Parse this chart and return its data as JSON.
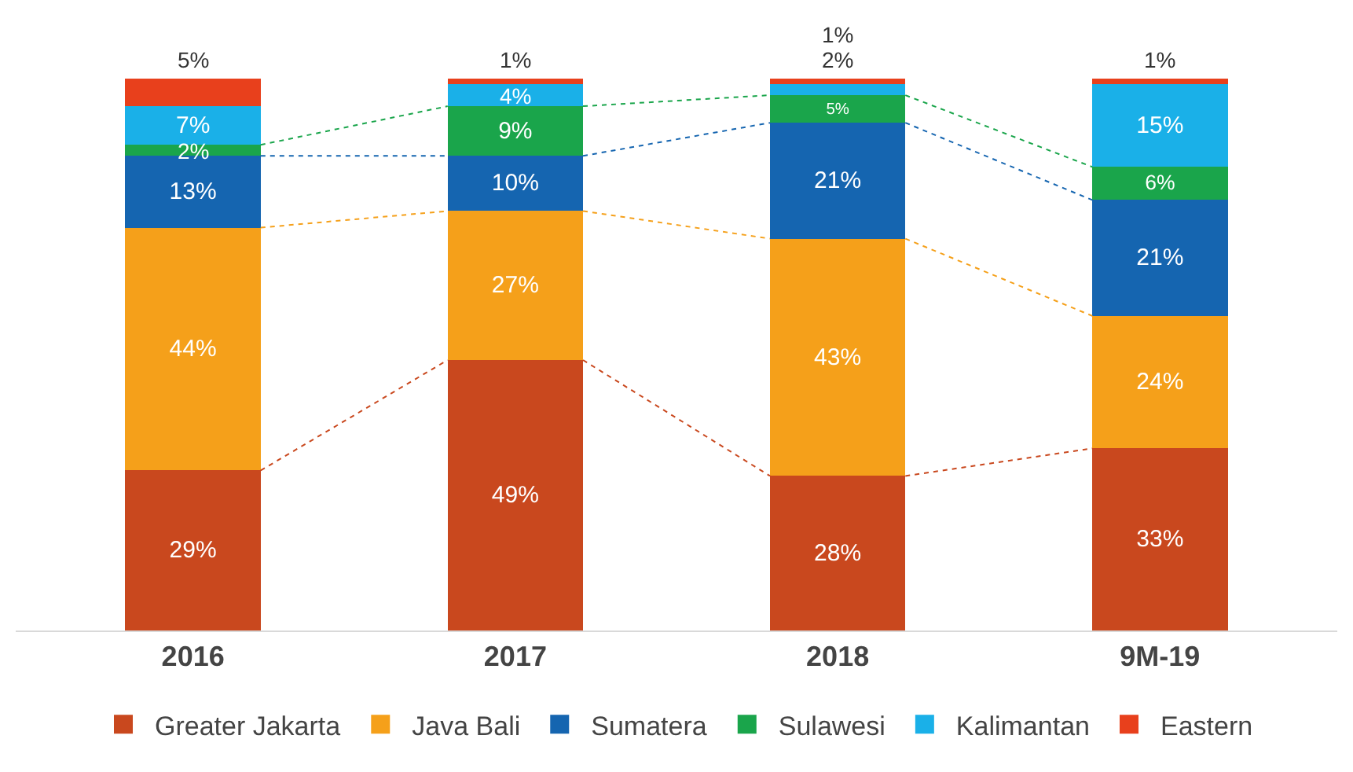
{
  "chart_data": {
    "type": "bar",
    "stacked": true,
    "categories": [
      "2016",
      "2017",
      "2018",
      "9M-19"
    ],
    "ylim": [
      0,
      100
    ],
    "tick_labels": "x",
    "grid": false,
    "legend": "bottom",
    "series": [
      {
        "name": "Greater Jakarta",
        "color": "#c9481e",
        "values": [
          29,
          49,
          28,
          33
        ],
        "value_labels": [
          "29%",
          "49%",
          "28%",
          "33%"
        ]
      },
      {
        "name": "Java Bali",
        "color": "#f5a01a",
        "values": [
          44,
          27,
          43,
          24
        ],
        "value_labels": [
          "44%",
          "27%",
          "43%",
          "24%"
        ]
      },
      {
        "name": "Sumatera",
        "color": "#1565b0",
        "values": [
          13,
          10,
          21,
          21
        ],
        "value_labels": [
          "13%",
          "10%",
          "21%",
          "21%"
        ]
      },
      {
        "name": "Sulawesi",
        "color": "#1aa54b",
        "values": [
          2,
          9,
          5,
          6
        ],
        "value_labels": [
          "2%",
          "9%",
          "5%",
          "6%"
        ]
      },
      {
        "name": "Kalimantan",
        "color": "#1ab0e8",
        "values": [
          7,
          4,
          2,
          15
        ],
        "value_labels": [
          "7%",
          "4%",
          "2%",
          "15%"
        ]
      },
      {
        "name": "Eastern",
        "color": "#e8401c",
        "values": [
          5,
          1,
          1,
          1
        ],
        "value_labels": [
          "5%",
          "1%",
          "1%",
          "1%"
        ]
      }
    ]
  }
}
